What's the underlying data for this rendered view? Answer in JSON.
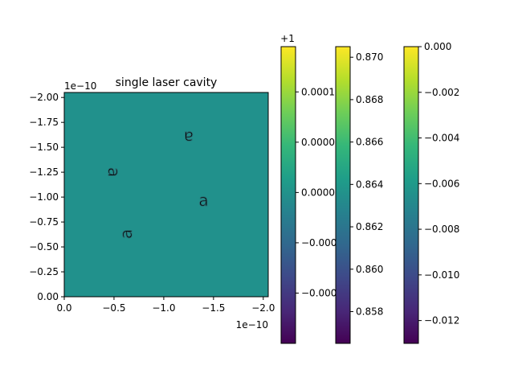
{
  "colors": {
    "viridis": [
      "#440154",
      "#482878",
      "#3e4989",
      "#31688e",
      "#26828e",
      "#1f9e89",
      "#35b779",
      "#6ece58",
      "#b5de2b",
      "#fde725"
    ],
    "field": "#21918c",
    "glyph": "#2a6f74",
    "axis": "#000000"
  },
  "chart_data": [
    {
      "type": "heatmap",
      "title": "single laser cavity",
      "xlabel": "",
      "ylabel": "",
      "x_offset_label": "1e−10",
      "y_offset_label": "1e−10",
      "xlim": [
        0,
        -2.05
      ],
      "ylim": [
        0,
        -2.05
      ],
      "xticks": [
        0,
        -0.5,
        -1.0,
        -1.5,
        -2.0
      ],
      "xtick_labels": [
        "0.0",
        "−0.5",
        "−1.0",
        "−1.5",
        "−2.0"
      ],
      "yticks": [
        0,
        -0.25,
        -0.5,
        -0.75,
        -1.0,
        -1.25,
        -1.5,
        -1.75,
        -2.0
      ],
      "ytick_labels": [
        "0.00",
        "−0.25",
        "−0.50",
        "−0.75",
        "−1.00",
        "−1.25",
        "−1.50",
        "−1.75",
        "−2.00"
      ],
      "grid": false,
      "colormap": "viridis",
      "annotations": [
        {
          "text": "a",
          "x": -0.5,
          "y": -1.25,
          "rotate": 90
        },
        {
          "text": "a",
          "x": -1.25,
          "y": -1.6,
          "rotate": 180
        },
        {
          "text": "a",
          "x": -1.4,
          "y": -0.97,
          "rotate": 0
        },
        {
          "text": "a",
          "x": -0.62,
          "y": -0.63,
          "rotate": -90
        }
      ]
    },
    {
      "type": "colorbar",
      "offset_label": "+1",
      "vmin": -0.00015,
      "vmax": 0.000145,
      "ticks": [
        -0.0001,
        -5e-05,
        0,
        5e-05,
        0.0001
      ],
      "tick_labels": [
        "−0.00010",
        "−0.00005",
        "0.00000",
        "0.00005",
        "0.00010"
      ]
    },
    {
      "type": "colorbar",
      "offset_label": "",
      "vmin": 0.8565,
      "vmax": 0.8705,
      "ticks": [
        0.858,
        0.86,
        0.862,
        0.864,
        0.866,
        0.868,
        0.87
      ],
      "tick_labels": [
        "0.858",
        "0.860",
        "0.862",
        "0.864",
        "0.866",
        "0.868",
        "0.870"
      ]
    },
    {
      "type": "colorbar",
      "offset_label": "",
      "vmin": -0.013,
      "vmax": 0.0,
      "ticks": [
        -0.012,
        -0.01,
        -0.008,
        -0.006,
        -0.004,
        -0.002,
        0.0
      ],
      "tick_labels": [
        "−0.012",
        "−0.010",
        "−0.008",
        "−0.006",
        "−0.004",
        "−0.002",
        "0.000"
      ]
    }
  ]
}
